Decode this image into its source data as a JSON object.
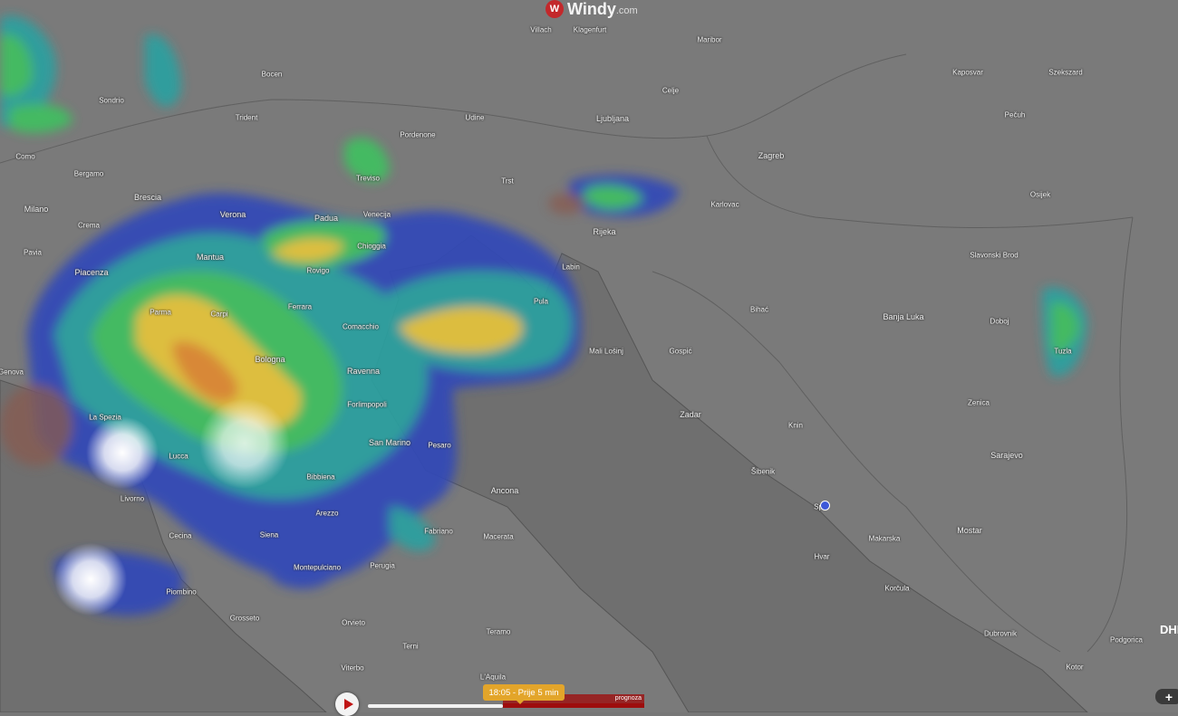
{
  "app": {
    "logo_text": "Windy",
    "logo_domain": ".com",
    "logo_badge": "W"
  },
  "layer_colors": {
    "light": "#3048b8",
    "low": "#2aa0a0",
    "moderate": "#40c060",
    "heavy": "#e6c43a",
    "very_heavy": "#e08a30",
    "extreme": "#c0306a",
    "land": "#777777",
    "sea": "#6e6e6e"
  },
  "cities": [
    "Sondrio",
    "Como",
    "Bergamo",
    "Brescia",
    "Milano",
    "Verona",
    "Trident",
    "Treviso",
    "Pordenone",
    "Udine",
    "Villach",
    "Klagenfurt",
    "Maribor",
    "Ljubljana",
    "Zagreb",
    "Trst",
    "Rijeka",
    "Padua",
    "Venecija",
    "Mantua",
    "Piacenza",
    "Parma",
    "Rovigo",
    "Ferrara",
    "Bologna",
    "Ravenna",
    "Pula",
    "Genova",
    "La Spezia",
    "Lucca",
    "Livorno",
    "San Marino",
    "Pesaro",
    "Ancona",
    "Siena",
    "Arezzo",
    "Perugia",
    "Grosseto",
    "Zadar",
    "Šibenik",
    "Sp",
    "Bihać",
    "Banja Luka",
    "Zenica",
    "Sarajevo",
    "Mostar",
    "Dubrovnik",
    "Podgorica",
    "Tuzla",
    "Slavonski Brod",
    "Osijek",
    "Pečuh",
    "Kaposvar",
    "Szekszard",
    "Doboj",
    "L'Aquila",
    "Terni",
    "Viterbo",
    "Chioggia",
    "Bocen",
    "Celje",
    "Karlovac",
    "Gospić",
    "Mali Lošinj",
    "Labin",
    "Teramo",
    "Pavia",
    "Crema",
    "Carpi",
    "Comacchio",
    "Forlimpopoli",
    "Bibbiena",
    "Cecina",
    "Piombino",
    "Montepulciano",
    "Fabriano",
    "Macerata",
    "Orvieto",
    "Knin",
    "Makarska",
    "Korčula",
    "Hvar",
    "Kotor"
  ],
  "timeline": {
    "current_label": "18:05 - Prije 5 min",
    "forecast_label": "prognoza",
    "progress_percent": 48
  },
  "partner_logo": "DHMZ",
  "controls": {
    "zoom_in": "+"
  }
}
